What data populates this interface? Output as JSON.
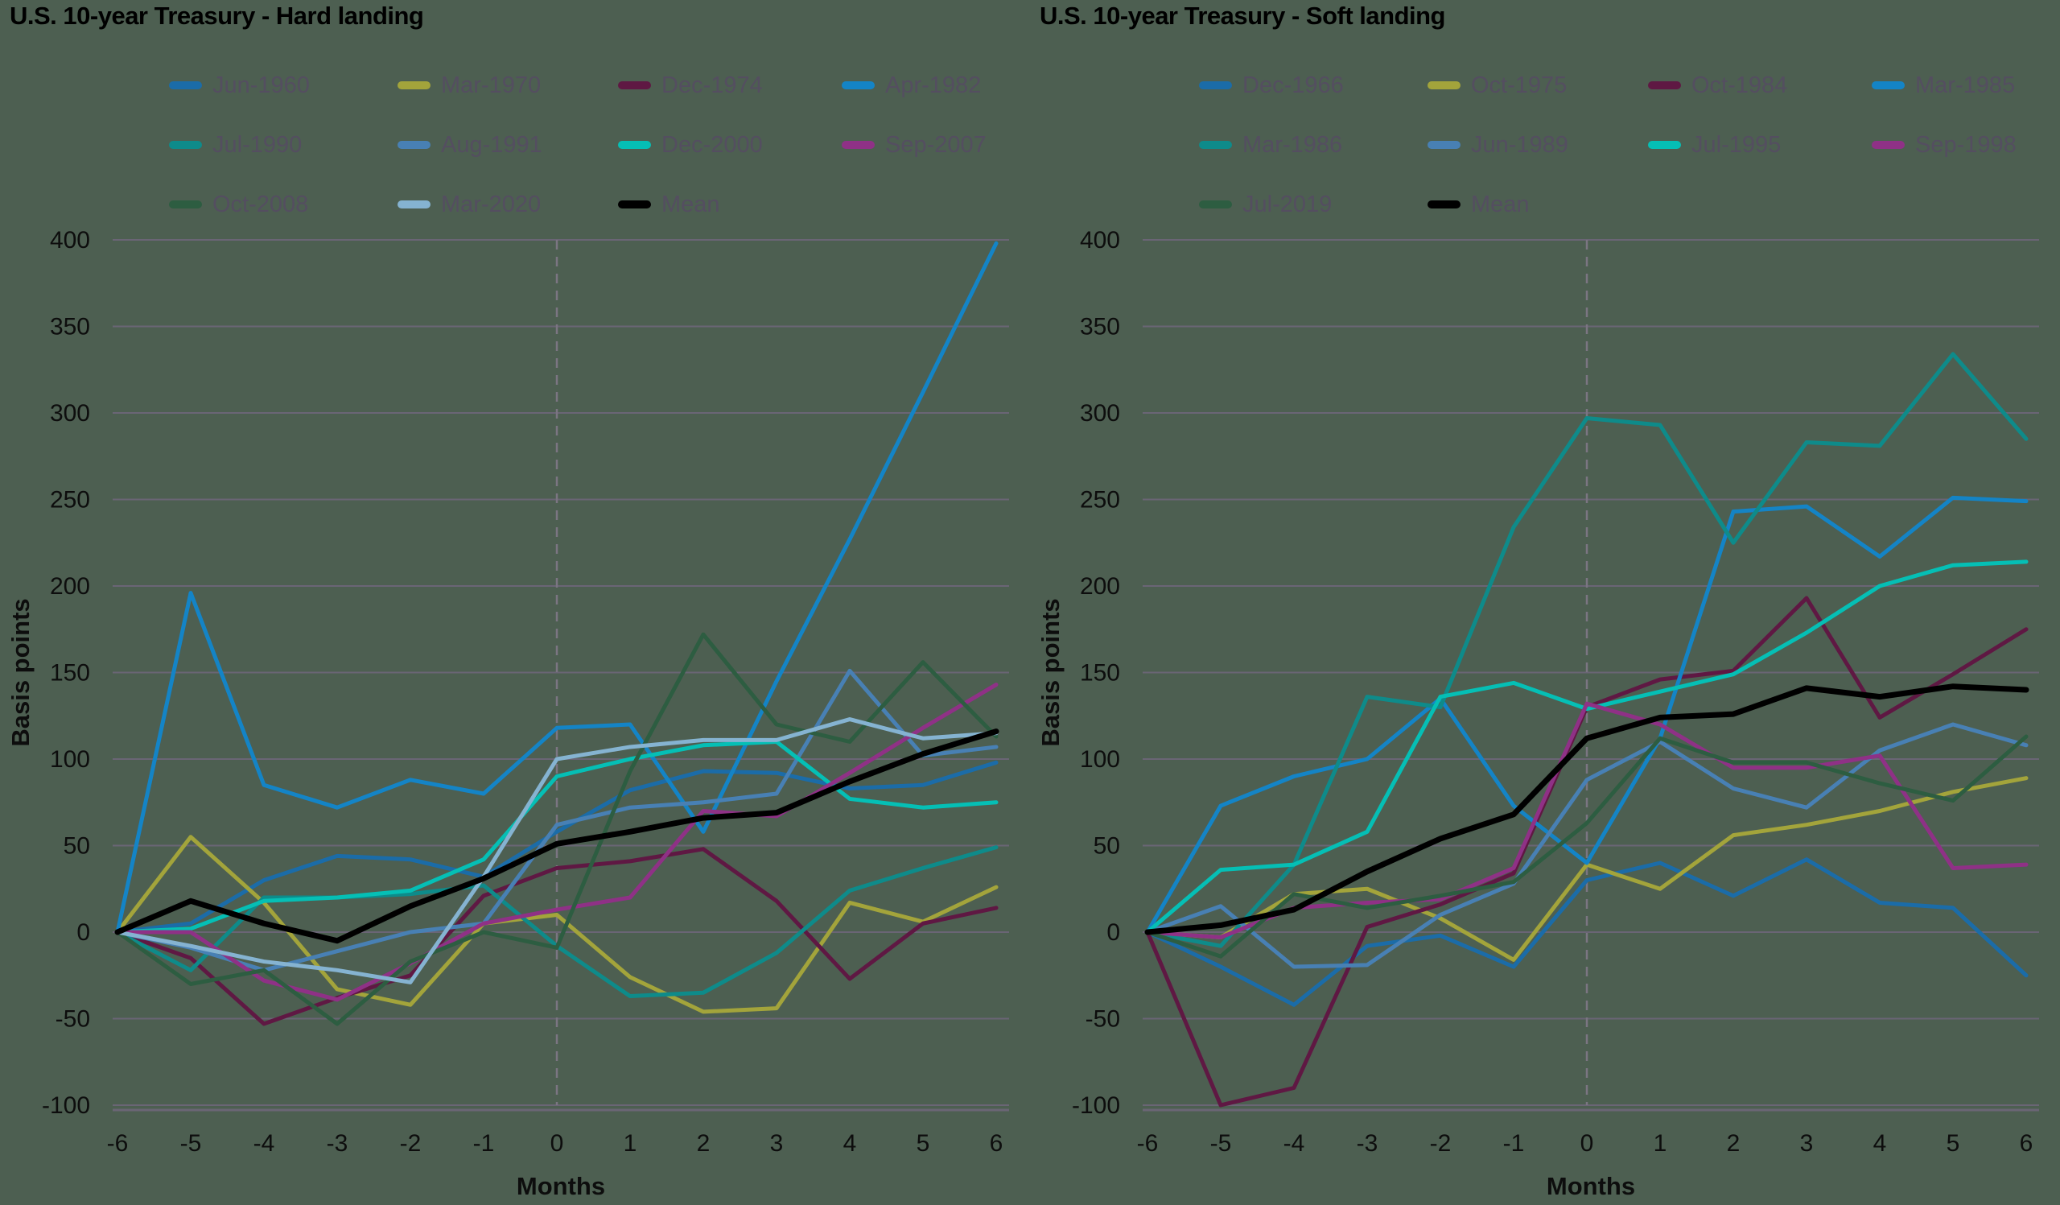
{
  "page": {
    "background": "#4d5f51"
  },
  "styles": {
    "grid_color": "#6a6575",
    "axis_line_color": "#6a6575",
    "dashed_line_color": "#7b7582",
    "title_color": "#000000",
    "tick_text_color": "#0d0d0d",
    "legend_text_color": "#544e60",
    "mean_color": "#000000"
  },
  "chart_data": [
    {
      "type": "line",
      "title": "U.S. 10-year Treasury - Hard landing",
      "ylabel": "Basis points",
      "xlabel": "Months",
      "x": [
        -6,
        -5,
        -4,
        -3,
        -2,
        -1,
        0,
        1,
        2,
        3,
        4,
        5,
        6
      ],
      "yticks": [
        400,
        350,
        300,
        250,
        200,
        150,
        100,
        50,
        0,
        -50,
        -100
      ],
      "ylim": [
        -100,
        400
      ],
      "grid": true,
      "legend_position": "top",
      "zero_month_dashed_line": true,
      "series": [
        {
          "name": "Jun-1960",
          "color": "#1b6ca8",
          "values": [
            0,
            5,
            30,
            44,
            42,
            32,
            58,
            82,
            93,
            92,
            83,
            85,
            98
          ]
        },
        {
          "name": "Mar-1970",
          "color": "#a3a43b",
          "values": [
            0,
            55,
            17,
            -33,
            -42,
            5,
            10,
            -26,
            -46,
            -44,
            17,
            6,
            26
          ]
        },
        {
          "name": "Dec-1974",
          "color": "#5f1843",
          "values": [
            0,
            -15,
            -53,
            -38,
            -25,
            21,
            37,
            41,
            48,
            18,
            -27,
            5,
            14
          ]
        },
        {
          "name": "Apr-1982",
          "color": "#1484c6",
          "values": [
            0,
            196,
            85,
            72,
            88,
            80,
            118,
            120,
            58,
            145,
            227,
            312,
            398
          ]
        },
        {
          "name": "Jul-1990",
          "color": "#0e8b8a",
          "values": [
            0,
            -22,
            20,
            20,
            22,
            27,
            -8,
            -37,
            -35,
            -12,
            24,
            37,
            49
          ]
        },
        {
          "name": "Aug-1991",
          "color": "#4880b4",
          "values": [
            0,
            -9,
            -22,
            -11,
            0,
            5,
            62,
            72,
            75,
            80,
            151,
            102,
            107
          ]
        },
        {
          "name": "Dec-2000",
          "color": "#05bfb5",
          "values": [
            0,
            2,
            18,
            20,
            24,
            42,
            90,
            100,
            108,
            110,
            77,
            72,
            75
          ]
        },
        {
          "name": "Sep-2007",
          "color": "#8f3186",
          "values": [
            0,
            0,
            -28,
            -39,
            -18,
            5,
            13,
            20,
            70,
            67,
            92,
            118,
            143
          ]
        },
        {
          "name": "Oct-2008",
          "color": "#2d5d41",
          "values": [
            0,
            -30,
            -22,
            -53,
            -17,
            0,
            -9,
            93,
            172,
            120,
            110,
            156,
            113
          ]
        },
        {
          "name": "Mar-2020",
          "color": "#85b3d1",
          "values": [
            0,
            -8,
            -17,
            -22,
            -29,
            32,
            100,
            107,
            111,
            111,
            123,
            112,
            115
          ]
        },
        {
          "name": "Mean",
          "color": "#000000",
          "values": [
            0,
            18,
            5,
            -5,
            15,
            31,
            51,
            58,
            66,
            69,
            87,
            103,
            116
          ]
        }
      ]
    },
    {
      "type": "line",
      "title": "U.S. 10-year Treasury - Soft landing",
      "ylabel": "Basis points",
      "xlabel": "Months",
      "x": [
        -6,
        -5,
        -4,
        -3,
        -2,
        -1,
        0,
        1,
        2,
        3,
        4,
        5,
        6
      ],
      "yticks": [
        400,
        350,
        300,
        250,
        200,
        150,
        100,
        50,
        0,
        -50,
        -100
      ],
      "ylim": [
        -100,
        400
      ],
      "grid": true,
      "legend_position": "top",
      "zero_month_dashed_line": true,
      "series": [
        {
          "name": "Dec-1966",
          "color": "#1b6ca8",
          "values": [
            0,
            -20,
            -42,
            -8,
            -2,
            -20,
            30,
            40,
            21,
            42,
            17,
            14,
            -25
          ]
        },
        {
          "name": "Oct-1975",
          "color": "#a3a43b",
          "values": [
            0,
            -3,
            22,
            25,
            8,
            -16,
            39,
            25,
            56,
            62,
            70,
            81,
            89
          ]
        },
        {
          "name": "Oct-1984",
          "color": "#5f1843",
          "values": [
            0,
            -100,
            -90,
            3,
            16,
            34,
            130,
            146,
            151,
            193,
            124,
            149,
            175
          ]
        },
        {
          "name": "Mar-1985",
          "color": "#1484c6",
          "values": [
            0,
            73,
            90,
            100,
            135,
            73,
            40,
            112,
            243,
            246,
            217,
            251,
            249
          ]
        },
        {
          "name": "Mar-1986",
          "color": "#0e8b8a",
          "values": [
            0,
            -8,
            39,
            136,
            130,
            234,
            297,
            293,
            225,
            283,
            281,
            334,
            285
          ]
        },
        {
          "name": "Jun-1989",
          "color": "#4880b4",
          "values": [
            0,
            15,
            -20,
            -19,
            10,
            28,
            88,
            110,
            83,
            72,
            105,
            120,
            108
          ]
        },
        {
          "name": "Jul-1995",
          "color": "#05bfb5",
          "values": [
            0,
            36,
            39,
            58,
            136,
            144,
            129,
            139,
            149,
            173,
            200,
            212,
            214
          ]
        },
        {
          "name": "Sep-1998",
          "color": "#8f3186",
          "values": [
            0,
            -3,
            14,
            17,
            19,
            37,
            132,
            120,
            95,
            95,
            102,
            37,
            39
          ]
        },
        {
          "name": "Jul-2019",
          "color": "#2d5d41",
          "values": [
            0,
            -14,
            22,
            14,
            21,
            29,
            63,
            112,
            98,
            98,
            86,
            76,
            113
          ]
        },
        {
          "name": "Mean",
          "color": "#000000",
          "values": [
            0,
            4,
            13,
            35,
            54,
            68,
            112,
            124,
            126,
            141,
            136,
            142,
            140
          ]
        }
      ]
    }
  ]
}
